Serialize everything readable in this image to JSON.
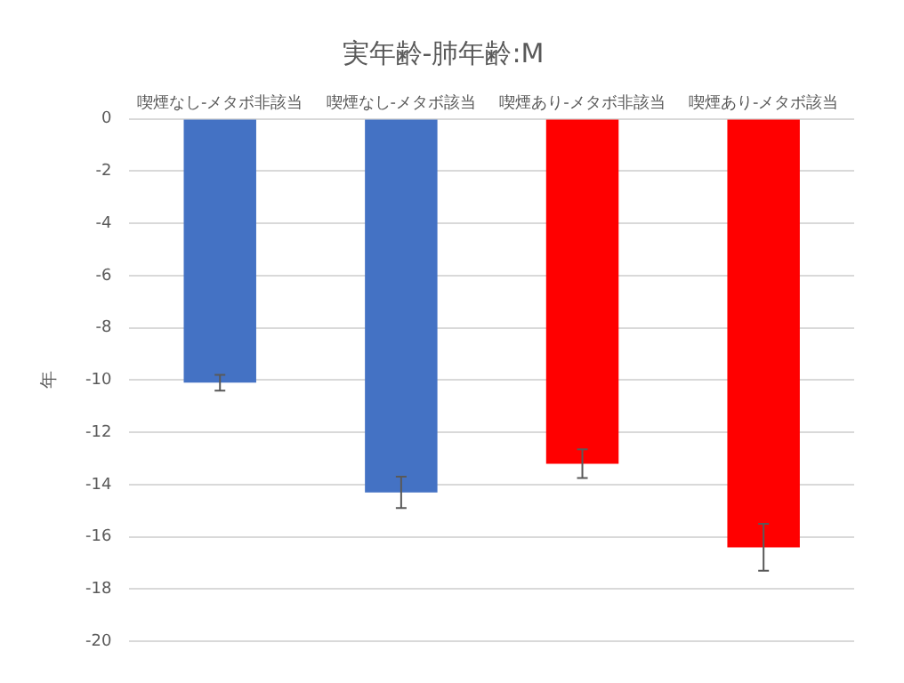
{
  "chart_data": {
    "type": "bar",
    "title": "実年齢-肺年齢:M",
    "ylabel": "年",
    "categories": [
      "喫煙なし-メタボ非該当",
      "喫煙なし-メタボ該当",
      "喫煙あり-メタボ非該当",
      "喫煙あり-メタボ該当"
    ],
    "values": [
      -10.1,
      -14.3,
      -13.2,
      -16.4
    ],
    "colors": [
      "#4472c4",
      "#4472c4",
      "#ff0000",
      "#ff0000"
    ],
    "errors": [
      0.3,
      0.6,
      0.55,
      0.9
    ],
    "ylim": [
      -20,
      0
    ],
    "yticks": [
      -20,
      -18,
      -16,
      -14,
      -12,
      -10,
      -8,
      -6,
      -4,
      -2,
      0
    ],
    "grid": "y",
    "legend": false
  }
}
